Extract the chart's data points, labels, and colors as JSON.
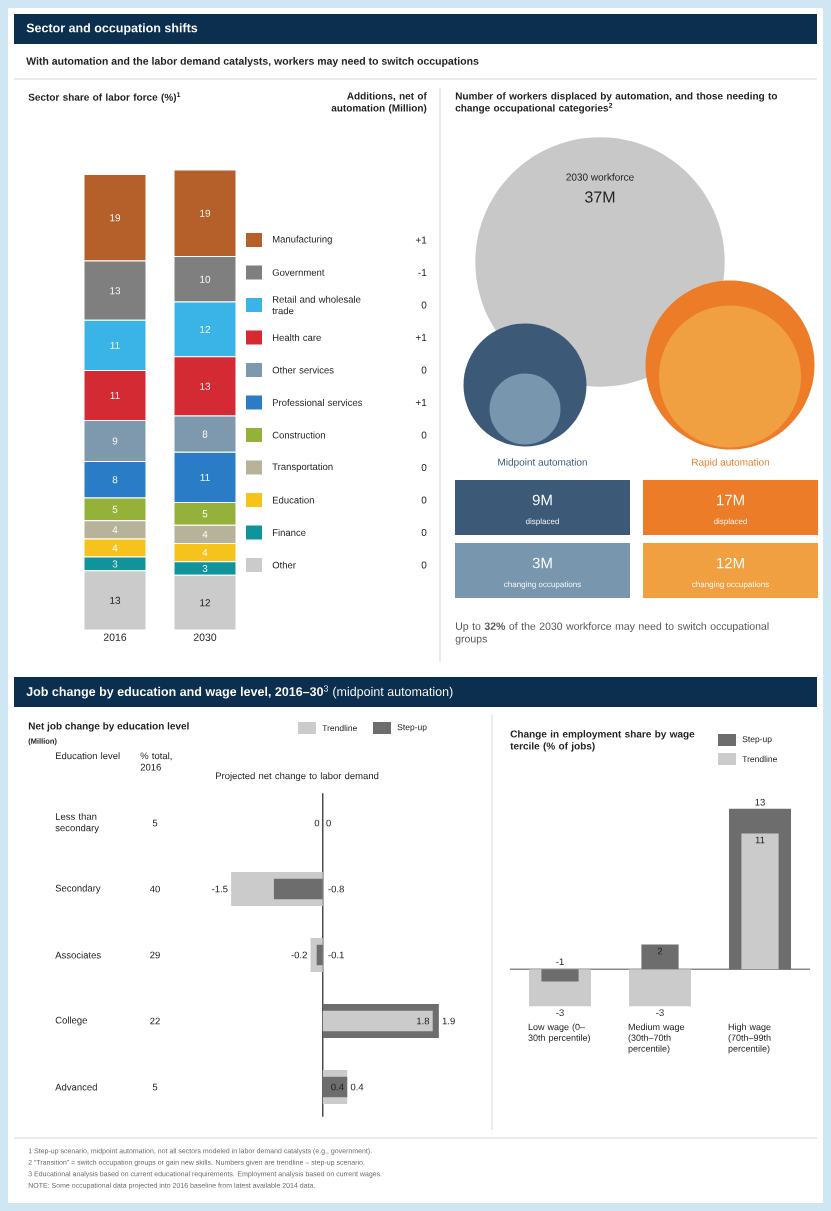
{
  "chart_data": [
    {
      "type": "other",
      "title": "Sector and occupation shifts",
      "subtitle": "With automation and the labor demand catalysts, workers may need to switch occupations"
    },
    {
      "type": "bar",
      "stacked": true,
      "title": "Sector share of labor force (%)$^{1}$",
      "legend_title": "Additions, net of automation (Million)",
      "categories": [
        "2016",
        "2030"
      ],
      "tick_labels": "x",
      "data_labels": true,
      "legend": "right",
      "series": [
        {
          "name": "Other",
          "color": "#cbcbcb",
          "values": [
            13,
            12
          ]
        },
        {
          "name": "Finance",
          "color": "#10939b",
          "values": [
            3,
            3
          ]
        },
        {
          "name": "Education",
          "color": "#f6c31c",
          "values": [
            4,
            4
          ]
        },
        {
          "name": "Transportation",
          "color": "#b6b39a",
          "values": [
            4,
            4
          ]
        },
        {
          "name": "Construction",
          "color": "#94b13a",
          "values": [
            5,
            5
          ]
        },
        {
          "name": "Professional services",
          "color": "#2a7cc7",
          "values": [
            8,
            11
          ]
        },
        {
          "name": "Other services",
          "color": "#7e98ad",
          "values": [
            9,
            8
          ]
        },
        {
          "name": "Health care",
          "color": "#d42a33",
          "values": [
            11,
            13
          ]
        },
        {
          "name": "Retail and wholesale trade",
          "color": "#3ab4e6",
          "values": [
            11,
            12
          ]
        },
        {
          "name": "Government",
          "color": "#7f7f7f",
          "values": [
            13,
            10
          ]
        },
        {
          "name": "Manufacturing",
          "color": "#b5602a",
          "values": [
            19,
            19
          ]
        }
      ],
      "annotations": [
        "+1",
        "-1",
        "0",
        "+1",
        "0",
        "+1",
        "0",
        "0",
        "0",
        "0",
        "0"
      ]
    },
    {
      "type": "other",
      "title": "Number of workers displaced by automation, and those needing to change occupational categories$^{2}$",
      "categories": [
        "displaced",
        "changing occupations"
      ],
      "series": [
        {
          "name": "2030 workforce",
          "colors": [
            "#c8c8c8",
            null
          ],
          "values": [
            37,
            null
          ],
          "value_labels": [
            "37M",
            null
          ]
        },
        {
          "name": "Midpoint automation",
          "colors": [
            "#3c5a78",
            "#7896ae"
          ],
          "values": [
            9,
            3
          ],
          "value_labels": [
            "9M",
            "3M"
          ]
        },
        {
          "name": "Rapid automation",
          "colors": [
            "#ec7c28",
            "#f0a040"
          ],
          "values": [
            17,
            12
          ],
          "value_labels": [
            "17M",
            "12M"
          ]
        }
      ],
      "annotations": [
        "Up to **32%** of the 2030 workforce may need to switch occupational groups"
      ]
    },
    {
      "type": "other",
      "title": "**Job change by education and wage level, 2016–30**$^{3}$ (midpoint automation)"
    },
    {
      "type": "bar",
      "orientation": "horizontal",
      "title": "Net job change by education level",
      "subtitle": "(Million)",
      "categories": [
        "Less than secondary",
        "Secondary",
        "Associates",
        "College",
        "Advanced"
      ],
      "tick_labels": "y",
      "data_labels": true,
      "legend": "top right",
      "series": [
        {
          "name": "Trendline",
          "color": "#cbcbcb",
          "values": [
            0,
            -1.5,
            -0.2,
            1.8,
            0.4
          ]
        },
        {
          "name": "Step-up",
          "color": "#6d6d6d",
          "values": [
            0,
            -0.8,
            -0.1,
            1.9,
            0.4
          ]
        }
      ],
      "annotations": [
        "Education level",
        "% total, 2016",
        "Projected net change to labor demand",
        "5",
        "40",
        "29",
        "22",
        "5"
      ]
    },
    {
      "type": "bar",
      "title": "Change in employment share by wage tercile (% of jobs)",
      "categories": [
        "Low wage (0–30th percentile)",
        "Medium wage (30th–70th percentile)",
        "High wage (70th–99th percentile)"
      ],
      "tick_labels": "x",
      "data_labels": true,
      "legend": "top right",
      "series": [
        {
          "name": "Step-up",
          "color": "#6d6d6d",
          "values": [
            -1,
            2,
            13
          ]
        },
        {
          "name": "Trendline",
          "color": "#cbcbcb",
          "values": [
            -3,
            -3,
            11
          ]
        }
      ]
    },
    {
      "type": "other",
      "annotations": [
        "1  Step-up scenario, midpoint automation, not all sectors modeled in labor demand catalysts (e.g., government).",
        "2  “Transition” = switch occupation groups or gain new skills. Numbers given are trendline – step-up scenario.",
        "3  Educational analysis based on current educational requirements. Employment analysis based on current wages.",
        "NOTE: Some occupational data projected into 2016 baseline from latest available 2014 data."
      ]
    }
  ]
}
